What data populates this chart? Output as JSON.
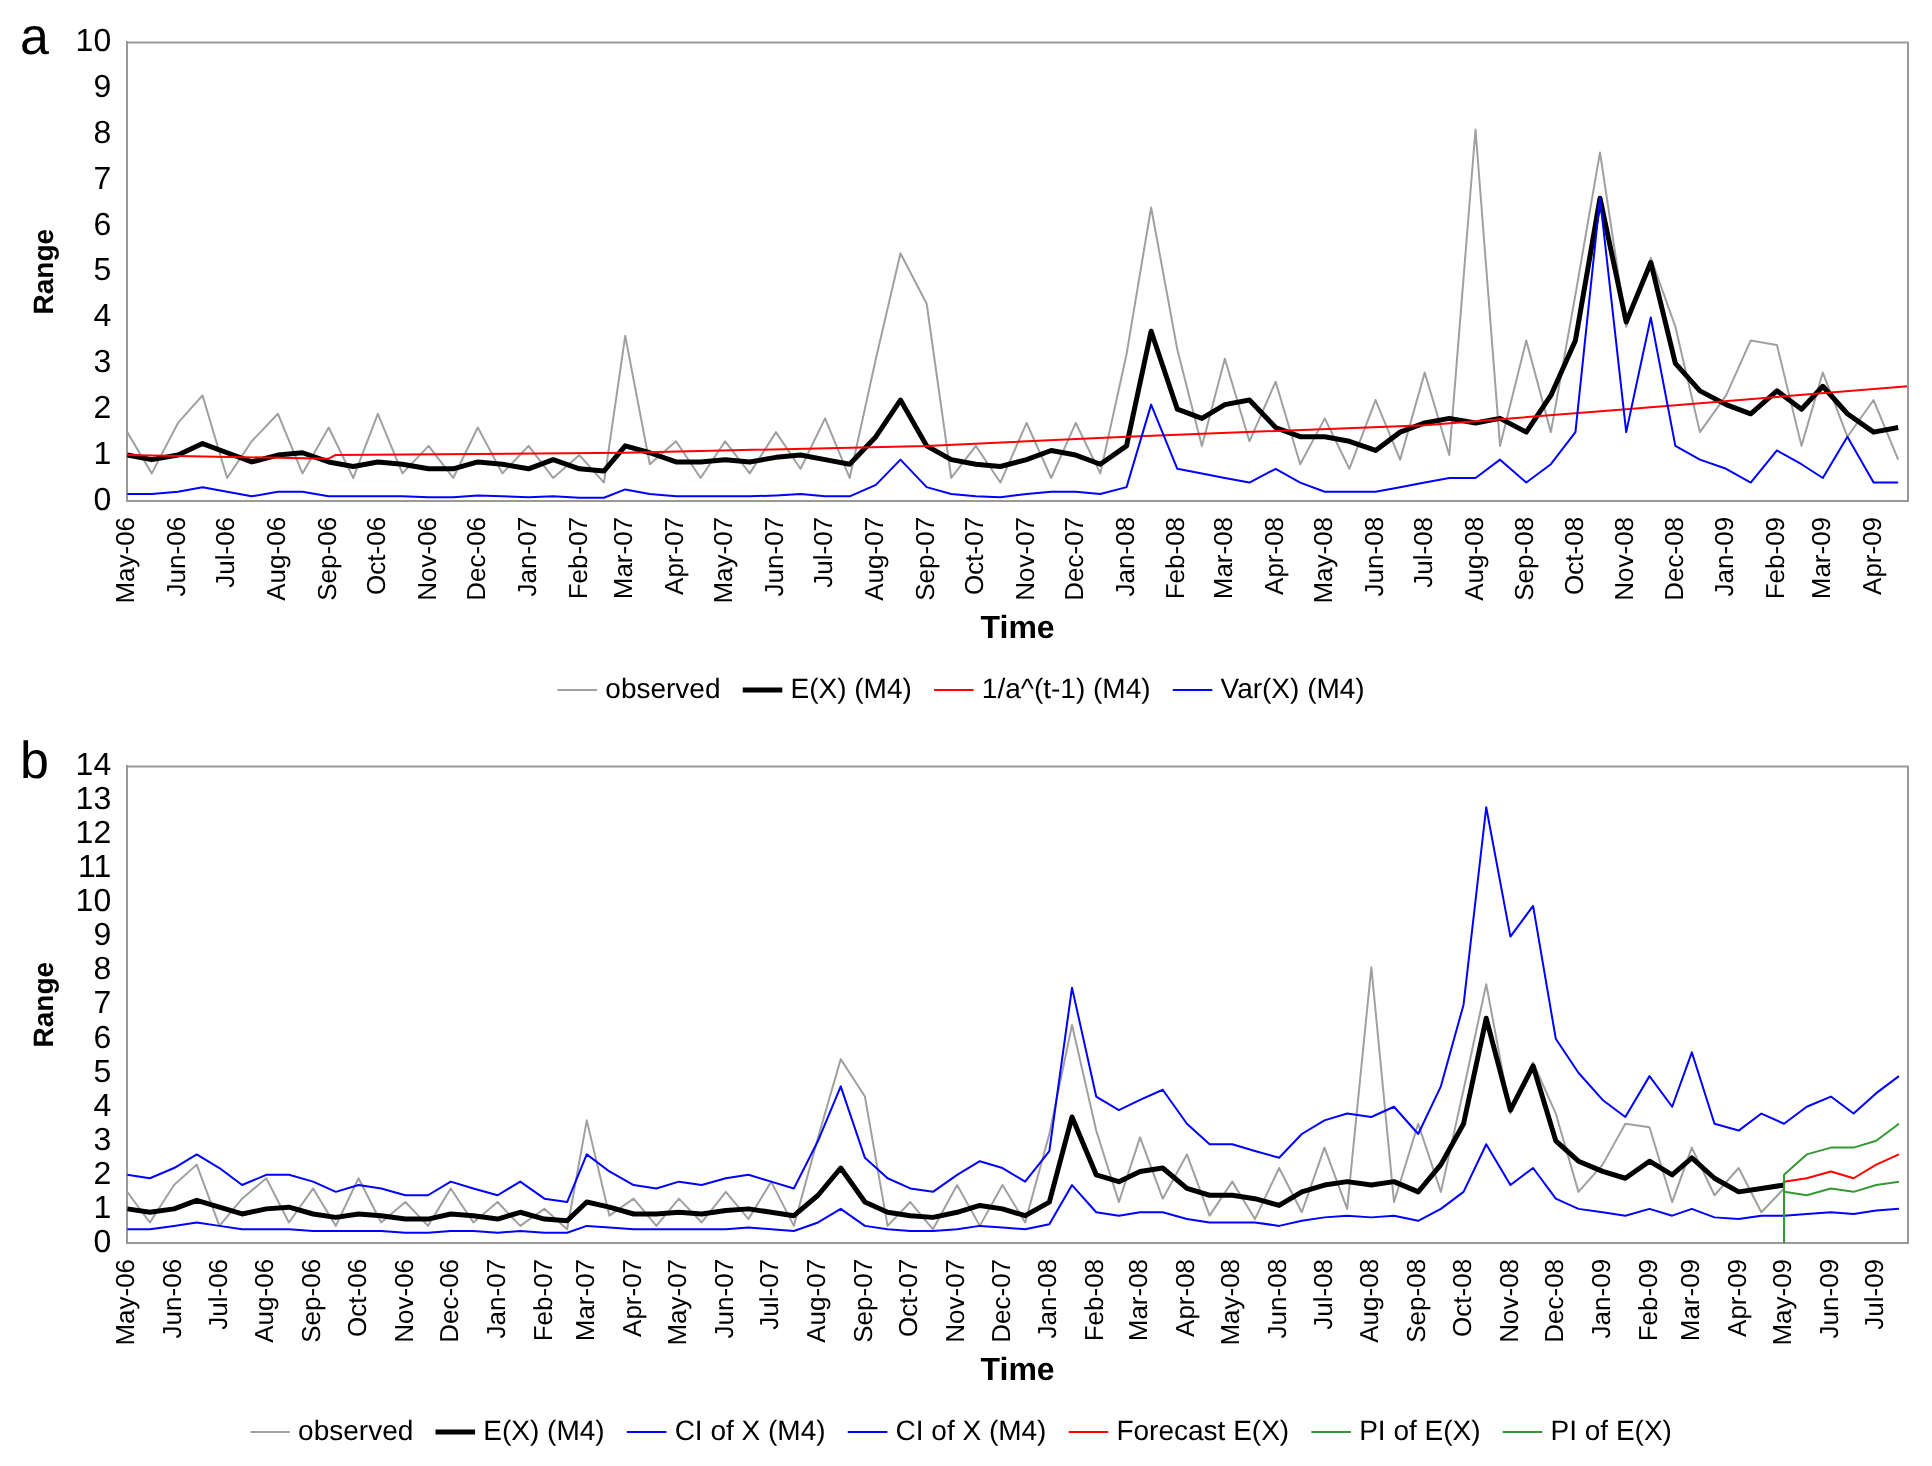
{
  "chart_data": [
    {
      "type": "line",
      "title": "a",
      "xlabel": "Time",
      "ylabel": "Range",
      "legend": "bottom",
      "x": [
        "2006-05-01",
        "2006-05-16",
        "2006-06-01",
        "2006-06-16",
        "2006-07-01",
        "2006-07-16",
        "2006-08-01",
        "2006-08-16",
        "2006-09-01",
        "2006-09-16",
        "2006-10-01",
        "2006-10-16",
        "2006-11-01",
        "2006-11-16",
        "2006-12-01",
        "2006-12-16",
        "2007-01-01",
        "2007-01-16",
        "2007-02-01",
        "2007-02-16",
        "2007-03-01",
        "2007-03-16",
        "2007-04-01",
        "2007-04-16",
        "2007-05-01",
        "2007-05-16",
        "2007-06-01",
        "2007-06-16",
        "2007-07-01",
        "2007-07-16",
        "2007-08-01",
        "2007-08-16",
        "2007-09-01",
        "2007-09-16",
        "2007-10-01",
        "2007-10-16",
        "2007-11-01",
        "2007-11-16",
        "2007-12-01",
        "2007-12-16",
        "2008-01-01",
        "2008-01-16",
        "2008-02-01",
        "2008-02-16",
        "2008-03-01",
        "2008-03-16",
        "2008-04-01",
        "2008-04-16",
        "2008-05-01",
        "2008-05-16",
        "2008-06-01",
        "2008-06-16",
        "2008-07-01",
        "2008-07-16",
        "2008-08-01",
        "2008-08-16",
        "2008-09-01",
        "2008-09-16",
        "2008-10-01",
        "2008-10-16",
        "2008-11-01",
        "2008-11-16",
        "2008-12-01",
        "2008-12-16",
        "2009-01-01",
        "2009-01-16",
        "2009-02-01",
        "2009-02-16",
        "2009-03-01",
        "2009-03-16",
        "2009-04-01",
        "2009-04-16"
      ],
      "xlim": [
        "2006-05-01",
        "2009-04-22"
      ],
      "xticks": [
        {
          "value": "2006-05-01",
          "label": "May-06"
        },
        {
          "value": "2006-06-01",
          "label": "Jun-06"
        },
        {
          "value": "2006-07-01",
          "label": "Jul-06"
        },
        {
          "value": "2006-08-01",
          "label": "Aug-06"
        },
        {
          "value": "2006-09-01",
          "label": "Sep-06"
        },
        {
          "value": "2006-10-01",
          "label": "Oct-06"
        },
        {
          "value": "2006-11-01",
          "label": "Nov-06"
        },
        {
          "value": "2006-12-01",
          "label": "Dec-06"
        },
        {
          "value": "2007-01-01",
          "label": "Jan-07"
        },
        {
          "value": "2007-02-01",
          "label": "Feb-07"
        },
        {
          "value": "2007-03-01",
          "label": "Mar-07"
        },
        {
          "value": "2007-04-01",
          "label": "Apr-07"
        },
        {
          "value": "2007-05-01",
          "label": "May-07"
        },
        {
          "value": "2007-06-01",
          "label": "Jun-07"
        },
        {
          "value": "2007-07-01",
          "label": "Jul-07"
        },
        {
          "value": "2007-08-01",
          "label": "Aug-07"
        },
        {
          "value": "2007-09-01",
          "label": "Sep-07"
        },
        {
          "value": "2007-10-01",
          "label": "Oct-07"
        },
        {
          "value": "2007-11-01",
          "label": "Nov-07"
        },
        {
          "value": "2007-12-01",
          "label": "Dec-07"
        },
        {
          "value": "2008-01-01",
          "label": "Jan-08"
        },
        {
          "value": "2008-02-01",
          "label": "Feb-08"
        },
        {
          "value": "2008-03-01",
          "label": "Mar-08"
        },
        {
          "value": "2008-04-01",
          "label": "Apr-08"
        },
        {
          "value": "2008-05-01",
          "label": "May-08"
        },
        {
          "value": "2008-06-01",
          "label": "Jun-08"
        },
        {
          "value": "2008-07-01",
          "label": "Jul-08"
        },
        {
          "value": "2008-08-01",
          "label": "Aug-08"
        },
        {
          "value": "2008-09-01",
          "label": "Sep-08"
        },
        {
          "value": "2008-10-01",
          "label": "Oct-08"
        },
        {
          "value": "2008-11-01",
          "label": "Nov-08"
        },
        {
          "value": "2008-12-01",
          "label": "Dec-08"
        },
        {
          "value": "2009-01-01",
          "label": "Jan-09"
        },
        {
          "value": "2009-02-01",
          "label": "Feb-09"
        },
        {
          "value": "2009-03-01",
          "label": "Mar-09"
        },
        {
          "value": "2009-04-01",
          "label": "Apr-09"
        }
      ],
      "ylim": [
        0,
        10
      ],
      "yticks": [
        0,
        1,
        2,
        3,
        4,
        5,
        6,
        7,
        8,
        9,
        10
      ],
      "series": [
        {
          "name": "observed",
          "color": "#a0a0a0",
          "values": [
            1.5,
            0.6,
            1.7,
            2.3,
            0.5,
            1.3,
            1.9,
            0.6,
            1.6,
            0.5,
            1.9,
            0.6,
            1.2,
            0.5,
            1.6,
            0.6,
            1.2,
            0.5,
            1.0,
            0.4,
            3.6,
            0.8,
            1.3,
            0.5,
            1.3,
            0.6,
            1.5,
            0.7,
            1.8,
            0.5,
            3.1,
            5.4,
            4.3,
            0.5,
            1.2,
            0.4,
            1.7,
            0.5,
            1.7,
            0.6,
            3.2,
            6.4,
            3.3,
            1.2,
            3.1,
            1.3,
            2.6,
            0.8,
            1.8,
            0.7,
            2.2,
            0.9,
            2.8,
            1.0,
            8.1,
            1.2,
            3.5,
            1.5,
            4.5,
            7.6,
            3.8,
            5.3,
            3.8,
            1.5,
            2.3,
            3.5,
            3.4,
            1.2,
            2.8,
            1.4,
            2.2,
            0.9
          ]
        },
        {
          "name": "E(X) (M4)",
          "color": "#000000",
          "values": [
            1.0,
            0.9,
            1.0,
            1.25,
            1.05,
            0.85,
            1.0,
            1.05,
            0.85,
            0.75,
            0.85,
            0.8,
            0.7,
            0.7,
            0.85,
            0.8,
            0.7,
            0.9,
            0.7,
            0.65,
            1.2,
            1.05,
            0.85,
            0.85,
            0.9,
            0.85,
            0.95,
            1.0,
            0.9,
            0.8,
            1.4,
            2.2,
            1.2,
            0.9,
            0.8,
            0.75,
            0.9,
            1.1,
            1.0,
            0.8,
            1.2,
            3.7,
            2.0,
            1.8,
            2.1,
            2.2,
            1.6,
            1.4,
            1.4,
            1.3,
            1.1,
            1.5,
            1.7,
            1.8,
            1.7,
            1.8,
            1.5,
            2.3,
            3.5,
            6.6,
            3.9,
            5.2,
            3.0,
            2.4,
            2.1,
            1.9,
            2.4,
            2.0,
            2.5,
            1.9,
            1.5,
            1.6
          ]
        },
        {
          "name": "1/a^(t-1) (M4)",
          "color": "#ff0000",
          "x": [
            "2006-05-01",
            "2006-09-01",
            "2006-09-05",
            "2007-03-01",
            "2007-09-01",
            "2008-01-01",
            "2008-07-01",
            "2008-11-01",
            "2009-04-22"
          ],
          "values": [
            1.0,
            0.92,
            1.0,
            1.05,
            1.2,
            1.4,
            1.65,
            2.0,
            2.5
          ]
        },
        {
          "name": "Var(X) (M4)",
          "color": "#0000ff",
          "values": [
            0.15,
            0.15,
            0.2,
            0.3,
            0.2,
            0.1,
            0.2,
            0.2,
            0.1,
            0.1,
            0.1,
            0.1,
            0.08,
            0.08,
            0.12,
            0.1,
            0.08,
            0.1,
            0.07,
            0.07,
            0.25,
            0.15,
            0.1,
            0.1,
            0.1,
            0.1,
            0.12,
            0.15,
            0.1,
            0.1,
            0.35,
            0.9,
            0.3,
            0.15,
            0.1,
            0.08,
            0.15,
            0.2,
            0.2,
            0.15,
            0.3,
            2.1,
            0.7,
            0.6,
            0.5,
            0.4,
            0.7,
            0.4,
            0.2,
            0.2,
            0.2,
            0.3,
            0.4,
            0.5,
            0.5,
            0.9,
            0.4,
            0.8,
            1.5,
            6.6,
            1.5,
            4.0,
            1.2,
            0.9,
            0.7,
            0.4,
            1.1,
            0.8,
            0.5,
            1.4,
            0.4,
            0.4
          ]
        }
      ]
    },
    {
      "type": "line",
      "title": "b",
      "xlabel": "Time",
      "ylabel": "Range",
      "legend": "bottom",
      "x": [
        "2006-05-01",
        "2006-05-16",
        "2006-06-01",
        "2006-06-16",
        "2006-07-01",
        "2006-07-16",
        "2006-08-01",
        "2006-08-16",
        "2006-09-01",
        "2006-09-16",
        "2006-10-01",
        "2006-10-16",
        "2006-11-01",
        "2006-11-16",
        "2006-12-01",
        "2006-12-16",
        "2007-01-01",
        "2007-01-16",
        "2007-02-01",
        "2007-02-16",
        "2007-03-01",
        "2007-03-16",
        "2007-04-01",
        "2007-04-16",
        "2007-05-01",
        "2007-05-16",
        "2007-06-01",
        "2007-06-16",
        "2007-07-01",
        "2007-07-16",
        "2007-08-01",
        "2007-08-16",
        "2007-09-01",
        "2007-09-16",
        "2007-10-01",
        "2007-10-16",
        "2007-11-01",
        "2007-11-16",
        "2007-12-01",
        "2007-12-16",
        "2008-01-01",
        "2008-01-16",
        "2008-02-01",
        "2008-02-16",
        "2008-03-01",
        "2008-03-16",
        "2008-04-01",
        "2008-04-16",
        "2008-05-01",
        "2008-05-16",
        "2008-06-01",
        "2008-06-16",
        "2008-07-01",
        "2008-07-16",
        "2008-08-01",
        "2008-08-16",
        "2008-09-01",
        "2008-09-16",
        "2008-10-01",
        "2008-10-16",
        "2008-11-01",
        "2008-11-16",
        "2008-12-01",
        "2008-12-16",
        "2009-01-01",
        "2009-01-16",
        "2009-02-01",
        "2009-02-16",
        "2009-03-01",
        "2009-03-16",
        "2009-04-01",
        "2009-04-16",
        "2009-05-01",
        "2009-05-16",
        "2009-06-01",
        "2009-06-16",
        "2009-07-01",
        "2009-07-16"
      ],
      "xlim": [
        "2006-05-01",
        "2009-07-22"
      ],
      "xticks": [
        {
          "value": "2006-05-01",
          "label": "May-06"
        },
        {
          "value": "2006-06-01",
          "label": "Jun-06"
        },
        {
          "value": "2006-07-01",
          "label": "Jul-06"
        },
        {
          "value": "2006-08-01",
          "label": "Aug-06"
        },
        {
          "value": "2006-09-01",
          "label": "Sep-06"
        },
        {
          "value": "2006-10-01",
          "label": "Oct-06"
        },
        {
          "value": "2006-11-01",
          "label": "Nov-06"
        },
        {
          "value": "2006-12-01",
          "label": "Dec-06"
        },
        {
          "value": "2007-01-01",
          "label": "Jan-07"
        },
        {
          "value": "2007-02-01",
          "label": "Feb-07"
        },
        {
          "value": "2007-03-01",
          "label": "Mar-07"
        },
        {
          "value": "2007-04-01",
          "label": "Apr-07"
        },
        {
          "value": "2007-05-01",
          "label": "May-07"
        },
        {
          "value": "2007-06-01",
          "label": "Jun-07"
        },
        {
          "value": "2007-07-01",
          "label": "Jul-07"
        },
        {
          "value": "2007-08-01",
          "label": "Aug-07"
        },
        {
          "value": "2007-09-01",
          "label": "Sep-07"
        },
        {
          "value": "2007-10-01",
          "label": "Oct-07"
        },
        {
          "value": "2007-11-01",
          "label": "Nov-07"
        },
        {
          "value": "2007-12-01",
          "label": "Dec-07"
        },
        {
          "value": "2008-01-01",
          "label": "Jan-08"
        },
        {
          "value": "2008-02-01",
          "label": "Feb-08"
        },
        {
          "value": "2008-03-01",
          "label": "Mar-08"
        },
        {
          "value": "2008-04-01",
          "label": "Apr-08"
        },
        {
          "value": "2008-05-01",
          "label": "May-08"
        },
        {
          "value": "2008-06-01",
          "label": "Jun-08"
        },
        {
          "value": "2008-07-01",
          "label": "Jul-08"
        },
        {
          "value": "2008-08-01",
          "label": "Aug-08"
        },
        {
          "value": "2008-09-01",
          "label": "Sep-08"
        },
        {
          "value": "2008-10-01",
          "label": "Oct-08"
        },
        {
          "value": "2008-11-01",
          "label": "Nov-08"
        },
        {
          "value": "2008-12-01",
          "label": "Dec-08"
        },
        {
          "value": "2009-01-01",
          "label": "Jan-09"
        },
        {
          "value": "2009-02-01",
          "label": "Feb-09"
        },
        {
          "value": "2009-03-01",
          "label": "Mar-09"
        },
        {
          "value": "2009-04-01",
          "label": "Apr-09"
        },
        {
          "value": "2009-05-01",
          "label": "May-09"
        },
        {
          "value": "2009-06-01",
          "label": "Jun-09"
        },
        {
          "value": "2009-07-01",
          "label": "Jul-09"
        }
      ],
      "ylim": [
        0,
        14
      ],
      "yticks": [
        0,
        1,
        2,
        3,
        4,
        5,
        6,
        7,
        8,
        9,
        10,
        11,
        12,
        13,
        14
      ],
      "series": [
        {
          "name": "observed",
          "color": "#a0a0a0",
          "values": [
            1.5,
            0.6,
            1.7,
            2.3,
            0.5,
            1.3,
            1.9,
            0.6,
            1.6,
            0.5,
            1.9,
            0.6,
            1.2,
            0.5,
            1.6,
            0.6,
            1.2,
            0.5,
            1.0,
            0.4,
            3.6,
            0.8,
            1.3,
            0.5,
            1.3,
            0.6,
            1.5,
            0.7,
            1.8,
            0.5,
            3.1,
            5.4,
            4.3,
            0.5,
            1.2,
            0.4,
            1.7,
            0.5,
            1.7,
            0.6,
            3.2,
            6.4,
            3.3,
            1.2,
            3.1,
            1.3,
            2.6,
            0.8,
            1.8,
            0.7,
            2.2,
            0.9,
            2.8,
            1.0,
            8.1,
            1.2,
            3.5,
            1.5,
            4.5,
            7.6,
            3.8,
            5.3,
            3.8,
            1.5,
            2.3,
            3.5,
            3.4,
            1.2,
            2.8,
            1.4,
            2.2,
            0.9,
            1.6,
            null,
            null,
            null,
            null,
            null
          ]
        },
        {
          "name": "E(X) (M4)",
          "color": "#000000",
          "values": [
            1.0,
            0.9,
            1.0,
            1.25,
            1.05,
            0.85,
            1.0,
            1.05,
            0.85,
            0.75,
            0.85,
            0.8,
            0.7,
            0.7,
            0.85,
            0.8,
            0.7,
            0.9,
            0.7,
            0.65,
            1.2,
            1.05,
            0.85,
            0.85,
            0.9,
            0.85,
            0.95,
            1.0,
            0.9,
            0.8,
            1.4,
            2.2,
            1.2,
            0.9,
            0.8,
            0.75,
            0.9,
            1.1,
            1.0,
            0.8,
            1.2,
            3.7,
            2.0,
            1.8,
            2.1,
            2.2,
            1.6,
            1.4,
            1.4,
            1.3,
            1.1,
            1.5,
            1.7,
            1.8,
            1.7,
            1.8,
            1.5,
            2.3,
            3.5,
            6.6,
            3.9,
            5.2,
            3.0,
            2.4,
            2.1,
            1.9,
            2.4,
            2.0,
            2.5,
            1.9,
            1.5,
            1.6,
            1.7,
            null,
            null,
            null,
            null,
            null
          ]
        },
        {
          "name": "CI of X (M4)",
          "color": "#0000ff",
          "values": [
            2.0,
            1.9,
            2.2,
            2.6,
            2.2,
            1.7,
            2.0,
            2.0,
            1.8,
            1.5,
            1.7,
            1.6,
            1.4,
            1.4,
            1.8,
            1.6,
            1.4,
            1.8,
            1.3,
            1.2,
            2.6,
            2.1,
            1.7,
            1.6,
            1.8,
            1.7,
            1.9,
            2.0,
            1.8,
            1.6,
            3.0,
            4.6,
            2.5,
            1.9,
            1.6,
            1.5,
            2.0,
            2.4,
            2.2,
            1.8,
            2.7,
            7.5,
            4.3,
            3.9,
            4.2,
            4.5,
            3.5,
            2.9,
            2.9,
            2.7,
            2.5,
            3.2,
            3.6,
            3.8,
            3.7,
            4.0,
            3.2,
            4.6,
            7.0,
            12.8,
            9.0,
            9.9,
            6.0,
            5.0,
            4.2,
            3.7,
            4.9,
            4.0,
            5.6,
            3.5,
            3.3,
            3.8,
            3.5,
            4.0,
            4.3,
            3.8,
            4.4,
            4.9
          ]
        },
        {
          "name": "CI of X (M4)",
          "color": "#0000ff",
          "values": [
            0.4,
            0.4,
            0.5,
            0.6,
            0.5,
            0.4,
            0.4,
            0.4,
            0.35,
            0.35,
            0.35,
            0.35,
            0.3,
            0.3,
            0.35,
            0.35,
            0.3,
            0.35,
            0.3,
            0.3,
            0.5,
            0.45,
            0.4,
            0.4,
            0.4,
            0.4,
            0.4,
            0.45,
            0.4,
            0.35,
            0.6,
            1.0,
            0.5,
            0.4,
            0.35,
            0.35,
            0.4,
            0.5,
            0.45,
            0.4,
            0.55,
            1.7,
            0.9,
            0.8,
            0.9,
            0.9,
            0.7,
            0.6,
            0.6,
            0.6,
            0.5,
            0.65,
            0.75,
            0.8,
            0.75,
            0.8,
            0.65,
            1.0,
            1.5,
            2.9,
            1.7,
            2.2,
            1.3,
            1.0,
            0.9,
            0.8,
            1.0,
            0.8,
            1.0,
            0.75,
            0.7,
            0.8,
            0.8,
            0.85,
            0.9,
            0.85,
            0.95,
            1.0
          ]
        },
        {
          "name": "Forecast E(X)",
          "color": "#ff0000",
          "x": [
            "2009-05-01",
            "2009-05-01",
            "2009-05-16",
            "2009-06-01",
            "2009-06-16",
            "2009-07-01",
            "2009-07-16"
          ],
          "values": [
            0,
            1.8,
            1.9,
            2.1,
            1.9,
            2.3,
            2.6
          ]
        },
        {
          "name": "PI of E(X)",
          "color": "#339933",
          "x": [
            "2009-05-01",
            "2009-05-01",
            "2009-05-16",
            "2009-06-01",
            "2009-06-16",
            "2009-07-01",
            "2009-07-16"
          ],
          "values": [
            0,
            2.0,
            2.6,
            2.8,
            2.8,
            3.0,
            3.5
          ]
        },
        {
          "name": "PI of E(X)",
          "color": "#339933",
          "x": [
            "2009-05-01",
            "2009-05-01",
            "2009-05-16",
            "2009-06-01",
            "2009-06-16",
            "2009-07-01",
            "2009-07-16"
          ],
          "values": [
            0,
            1.5,
            1.4,
            1.6,
            1.5,
            1.7,
            1.8
          ]
        }
      ]
    }
  ]
}
